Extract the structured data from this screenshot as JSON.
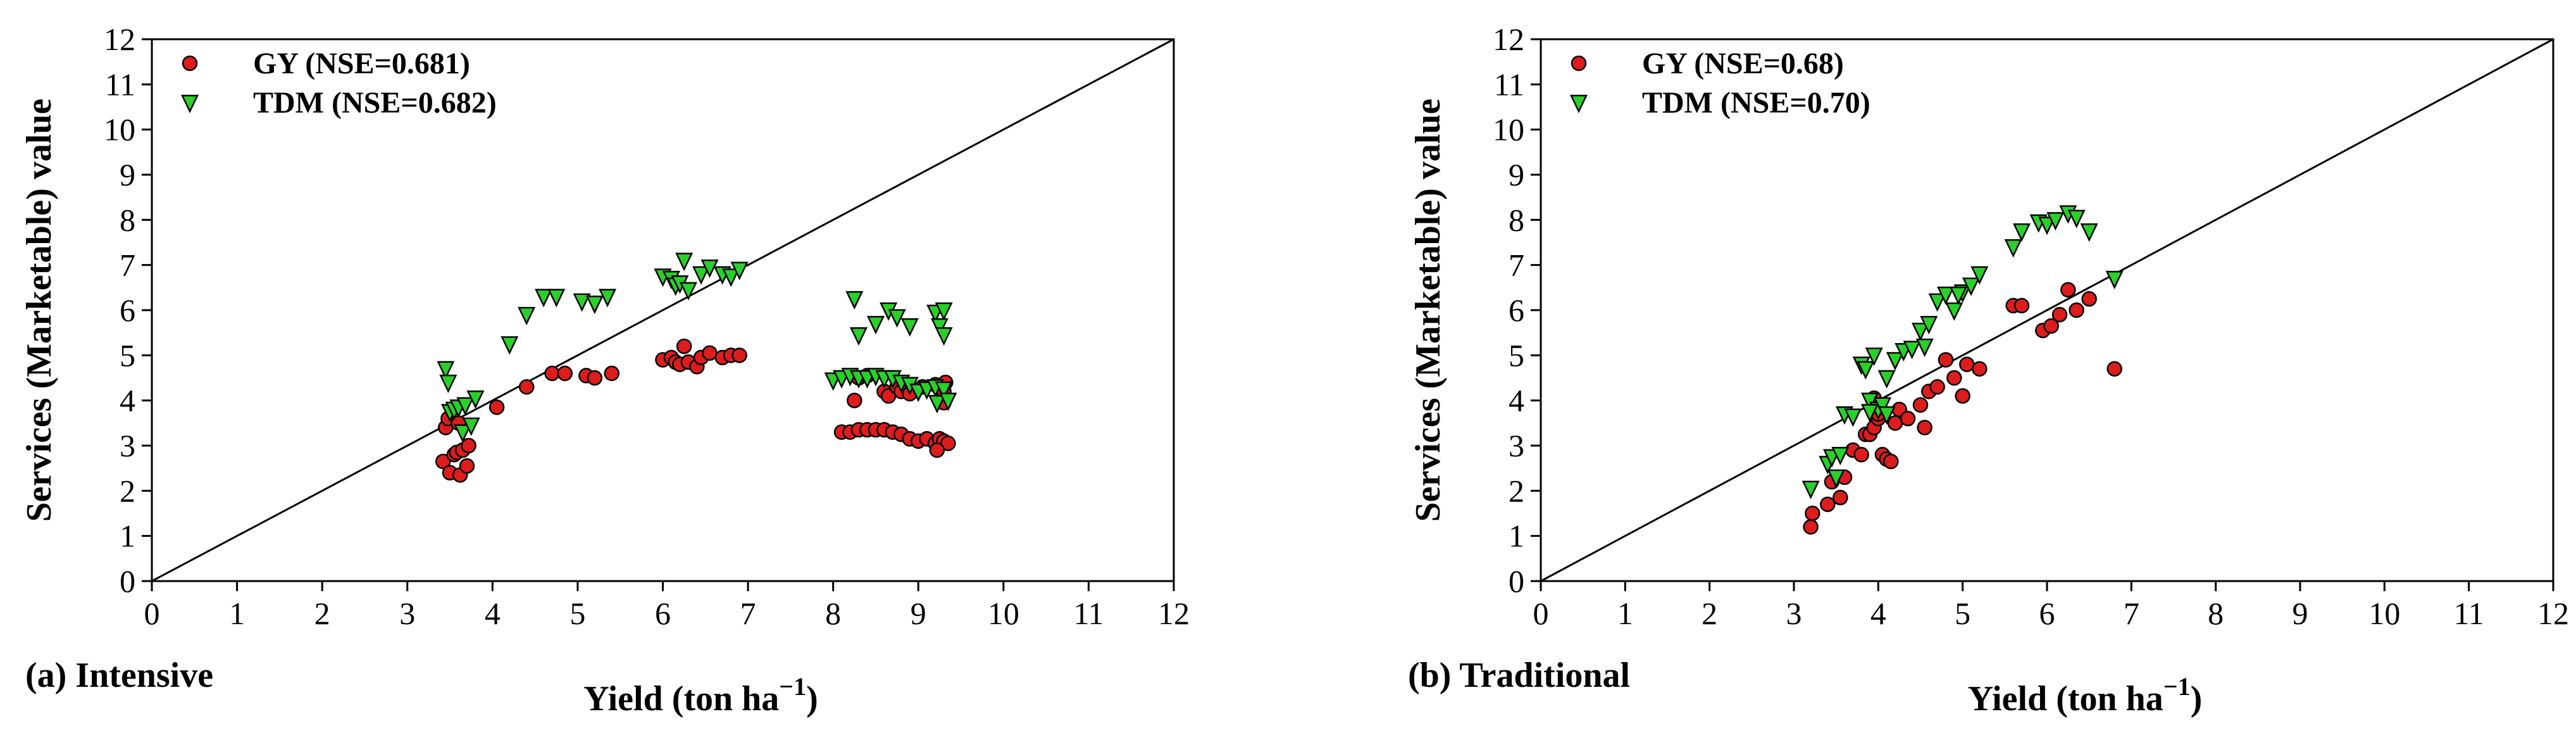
{
  "chart_data": [
    {
      "type": "scatter",
      "panel_label": "(a) Intensive",
      "xlabel": "Yield (ton ha",
      "xlabel_sup": "−1",
      "xlabel_close": ")",
      "ylabel": "Services (Marketable) value",
      "xlim": [
        0,
        12
      ],
      "ylim": [
        0,
        12
      ],
      "xticks": [
        "0",
        "1",
        "2",
        "3",
        "4",
        "5",
        "6",
        "7",
        "8",
        "9",
        "10",
        "11",
        "12"
      ],
      "yticks": [
        "0",
        "1",
        "2",
        "3",
        "4",
        "5",
        "6",
        "7",
        "8",
        "9",
        "10",
        "11",
        "12"
      ],
      "reference_line": "1:1",
      "legend_position": "top-left",
      "series": [
        {
          "name": "GY (NSE=0.681)",
          "marker": "circle",
          "color": "#dd1c1c",
          "points": [
            [
              3.42,
              2.65
            ],
            [
              3.45,
              3.4
            ],
            [
              3.48,
              3.6
            ],
            [
              3.5,
              2.4
            ],
            [
              3.55,
              2.8
            ],
            [
              3.58,
              2.85
            ],
            [
              3.6,
              3.5
            ],
            [
              3.62,
              2.35
            ],
            [
              3.65,
              2.9
            ],
            [
              3.7,
              2.55
            ],
            [
              3.72,
              3.0
            ],
            [
              4.05,
              3.85
            ],
            [
              4.4,
              4.3
            ],
            [
              4.7,
              4.6
            ],
            [
              4.85,
              4.6
            ],
            [
              5.1,
              4.55
            ],
            [
              5.2,
              4.5
            ],
            [
              5.4,
              4.6
            ],
            [
              6.0,
              4.9
            ],
            [
              6.1,
              4.95
            ],
            [
              6.15,
              4.85
            ],
            [
              6.2,
              4.8
            ],
            [
              6.25,
              5.2
            ],
            [
              6.3,
              4.85
            ],
            [
              6.4,
              4.75
            ],
            [
              6.45,
              4.95
            ],
            [
              6.55,
              5.05
            ],
            [
              6.7,
              4.95
            ],
            [
              6.8,
              5.0
            ],
            [
              6.9,
              5.0
            ],
            [
              8.1,
              3.3
            ],
            [
              8.2,
              3.3
            ],
            [
              8.3,
              3.35
            ],
            [
              8.4,
              3.35
            ],
            [
              8.5,
              3.35
            ],
            [
              8.6,
              3.35
            ],
            [
              8.7,
              3.3
            ],
            [
              8.8,
              3.25
            ],
            [
              8.9,
              3.15
            ],
            [
              9.0,
              3.1
            ],
            [
              9.1,
              3.15
            ],
            [
              9.2,
              3.05
            ],
            [
              9.25,
              3.15
            ],
            [
              9.3,
              3.1
            ],
            [
              9.35,
              3.05
            ],
            [
              9.22,
              2.9
            ],
            [
              8.25,
              4.0
            ],
            [
              8.3,
              4.5
            ],
            [
              8.4,
              4.55
            ],
            [
              8.6,
              4.2
            ],
            [
              8.65,
              4.1
            ],
            [
              8.75,
              4.3
            ],
            [
              8.8,
              4.2
            ],
            [
              8.9,
              4.15
            ],
            [
              9.05,
              4.3
            ],
            [
              9.2,
              4.35
            ],
            [
              9.3,
              4.2
            ],
            [
              9.32,
              4.4
            ],
            [
              9.3,
              3.95
            ]
          ]
        },
        {
          "name": "TDM (NSE=0.682)",
          "marker": "triangle-down",
          "color": "#2ad02a",
          "points": [
            [
              3.45,
              4.7
            ],
            [
              3.48,
              4.4
            ],
            [
              3.5,
              3.75
            ],
            [
              3.55,
              3.8
            ],
            [
              3.6,
              3.85
            ],
            [
              3.65,
              3.3
            ],
            [
              3.68,
              3.9
            ],
            [
              3.75,
              3.45
            ],
            [
              3.8,
              4.05
            ],
            [
              4.2,
              5.25
            ],
            [
              4.4,
              5.9
            ],
            [
              4.6,
              6.3
            ],
            [
              4.75,
              6.3
            ],
            [
              5.05,
              6.2
            ],
            [
              5.2,
              6.15
            ],
            [
              5.35,
              6.3
            ],
            [
              6.0,
              6.75
            ],
            [
              6.1,
              6.7
            ],
            [
              6.15,
              6.55
            ],
            [
              6.2,
              6.6
            ],
            [
              6.25,
              7.1
            ],
            [
              6.3,
              6.45
            ],
            [
              6.45,
              6.8
            ],
            [
              6.55,
              6.95
            ],
            [
              6.7,
              6.8
            ],
            [
              6.8,
              6.75
            ],
            [
              6.9,
              6.9
            ],
            [
              8.0,
              4.45
            ],
            [
              8.1,
              4.5
            ],
            [
              8.2,
              4.55
            ],
            [
              8.3,
              4.5
            ],
            [
              8.4,
              4.5
            ],
            [
              8.5,
              4.55
            ],
            [
              8.6,
              4.5
            ],
            [
              8.7,
              4.5
            ],
            [
              8.8,
              4.4
            ],
            [
              8.9,
              4.35
            ],
            [
              9.0,
              4.2
            ],
            [
              9.1,
              4.25
            ],
            [
              9.2,
              4.3
            ],
            [
              9.3,
              4.25
            ],
            [
              8.25,
              6.25
            ],
            [
              8.3,
              5.45
            ],
            [
              8.5,
              5.7
            ],
            [
              8.65,
              6.0
            ],
            [
              8.75,
              5.85
            ],
            [
              8.9,
              5.65
            ],
            [
              9.2,
              5.95
            ],
            [
              9.3,
              6.0
            ],
            [
              9.25,
              5.65
            ],
            [
              9.3,
              5.45
            ],
            [
              9.22,
              3.95
            ],
            [
              9.35,
              4.0
            ]
          ]
        }
      ]
    },
    {
      "type": "scatter",
      "panel_label": "(b) Traditional",
      "xlabel": "Yield (ton ha",
      "xlabel_sup": "−1",
      "xlabel_close": ")",
      "ylabel": "Services (Marketable) value",
      "xlim": [
        0,
        12
      ],
      "ylim": [
        0,
        12
      ],
      "xticks": [
        "0",
        "1",
        "2",
        "3",
        "4",
        "5",
        "6",
        "7",
        "8",
        "9",
        "10",
        "11",
        "12"
      ],
      "yticks": [
        "0",
        "1",
        "2",
        "3",
        "4",
        "5",
        "6",
        "7",
        "8",
        "9",
        "10",
        "11",
        "12"
      ],
      "reference_line": "1:1",
      "legend_position": "top-left",
      "series": [
        {
          "name": "GY (NSE=0.68)",
          "marker": "circle",
          "color": "#dd1c1c",
          "points": [
            [
              3.2,
              1.2
            ],
            [
              3.22,
              1.5
            ],
            [
              3.4,
              1.7
            ],
            [
              3.45,
              2.2
            ],
            [
              3.55,
              1.85
            ],
            [
              3.6,
              2.3
            ],
            [
              3.7,
              2.9
            ],
            [
              3.8,
              2.8
            ],
            [
              3.85,
              3.25
            ],
            [
              3.9,
              3.25
            ],
            [
              3.95,
              3.4
            ],
            [
              4.0,
              3.6
            ],
            [
              4.05,
              2.8
            ],
            [
              4.1,
              2.7
            ],
            [
              4.15,
              2.65
            ],
            [
              4.2,
              3.5
            ],
            [
              4.25,
              3.8
            ],
            [
              4.35,
              3.6
            ],
            [
              4.5,
              3.9
            ],
            [
              4.55,
              3.4
            ],
            [
              4.6,
              4.2
            ],
            [
              4.7,
              4.3
            ],
            [
              4.8,
              4.9
            ],
            [
              4.9,
              4.5
            ],
            [
              5.0,
              4.1
            ],
            [
              5.05,
              4.8
            ],
            [
              5.2,
              4.7
            ],
            [
              5.6,
              6.1
            ],
            [
              5.7,
              6.1
            ],
            [
              5.95,
              5.55
            ],
            [
              6.05,
              5.65
            ],
            [
              6.15,
              5.9
            ],
            [
              6.25,
              6.45
            ],
            [
              6.35,
              6.0
            ],
            [
              6.5,
              6.25
            ],
            [
              6.8,
              4.7
            ],
            [
              3.95,
              4.05
            ],
            [
              4.0,
              3.7
            ]
          ]
        },
        {
          "name": "TDM (NSE=0.70)",
          "marker": "triangle-down",
          "color": "#2ad02a",
          "points": [
            [
              3.2,
              2.05
            ],
            [
              3.4,
              2.6
            ],
            [
              3.45,
              2.75
            ],
            [
              3.5,
              2.3
            ],
            [
              3.55,
              2.8
            ],
            [
              3.6,
              3.7
            ],
            [
              3.7,
              3.65
            ],
            [
              3.8,
              4.8
            ],
            [
              3.85,
              4.7
            ],
            [
              3.9,
              4.0
            ],
            [
              3.95,
              5.0
            ],
            [
              4.0,
              3.8
            ],
            [
              4.05,
              3.9
            ],
            [
              4.1,
              4.5
            ],
            [
              4.2,
              4.9
            ],
            [
              4.3,
              5.1
            ],
            [
              4.4,
              5.15
            ],
            [
              4.5,
              5.55
            ],
            [
              4.55,
              5.2
            ],
            [
              4.6,
              5.7
            ],
            [
              4.7,
              6.2
            ],
            [
              4.8,
              6.35
            ],
            [
              4.9,
              6.0
            ],
            [
              5.0,
              6.4
            ],
            [
              5.1,
              6.55
            ],
            [
              5.2,
              6.8
            ],
            [
              5.6,
              7.4
            ],
            [
              5.7,
              7.75
            ],
            [
              5.9,
              7.95
            ],
            [
              6.0,
              7.9
            ],
            [
              6.1,
              8.0
            ],
            [
              6.25,
              8.15
            ],
            [
              6.35,
              8.05
            ],
            [
              6.5,
              7.75
            ],
            [
              6.8,
              6.7
            ],
            [
              3.9,
              3.75
            ],
            [
              4.1,
              3.7
            ],
            [
              4.95,
              6.35
            ]
          ]
        }
      ]
    }
  ]
}
